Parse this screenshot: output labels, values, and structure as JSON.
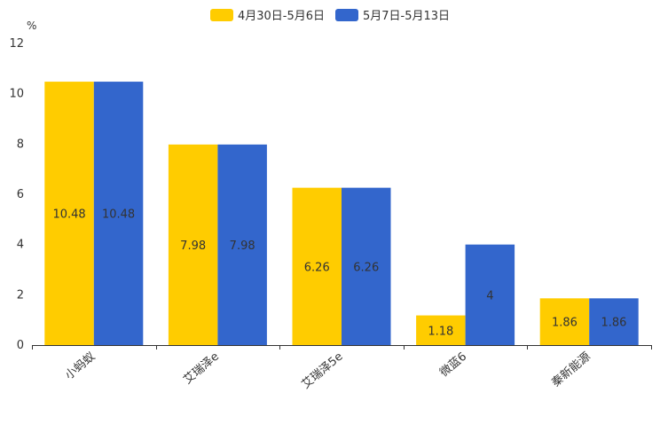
{
  "chart_data": {
    "type": "bar",
    "unit": "%",
    "categories": [
      "小蚂蚁",
      "艾瑞泽e",
      "艾瑞泽5e",
      "微蓝6",
      "秦新能源"
    ],
    "series": [
      {
        "name": "4月30日-5月6日",
        "color": "#FFCC00",
        "values": [
          10.48,
          7.98,
          6.26,
          1.18,
          1.86
        ]
      },
      {
        "name": "5月7日-5月13日",
        "color": "#3366CC",
        "values": [
          10.48,
          7.98,
          6.26,
          4,
          1.86
        ]
      }
    ],
    "ylim": [
      0,
      12
    ],
    "yticks": [
      0,
      2,
      4,
      6,
      8,
      10,
      12
    ],
    "grid": false,
    "legend_position": "top-center"
  }
}
